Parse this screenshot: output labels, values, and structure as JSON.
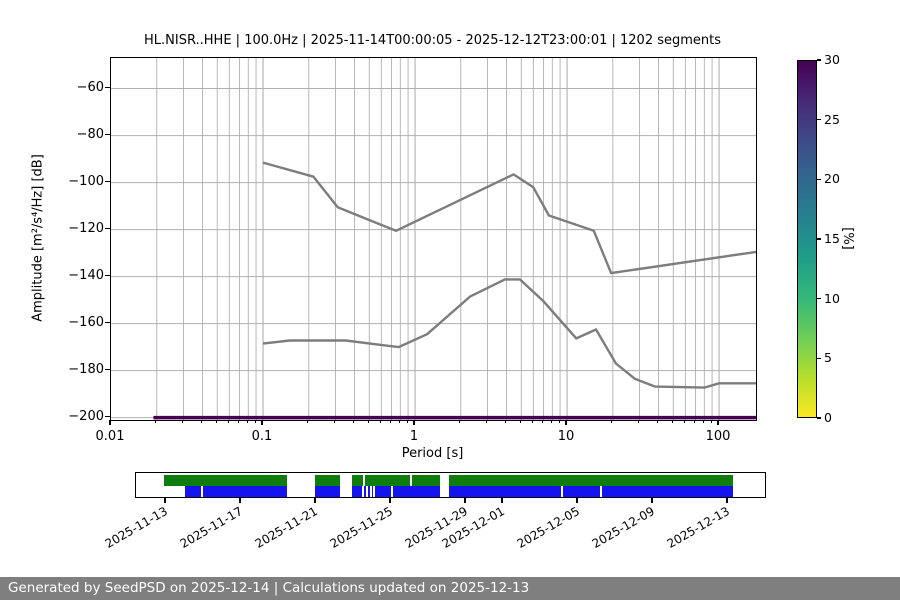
{
  "header": {
    "title": "HL.NISR..HHE | 100.0Hz | 2025-11-14T00:00:05 - 2025-12-12T23:00:01 | 1202 segments"
  },
  "chart_data": {
    "type": "line",
    "title": "HL.NISR..HHE | 100.0Hz | 2025-11-14T00:00:05 - 2025-12-12T23:00:01 | 1202 segments",
    "xlabel": "Period [s]",
    "ylabel": "Amplitude [m²/s⁴/Hz] [dB]",
    "xscale": "log",
    "xlim": [
      0.01,
      175
    ],
    "ylim": [
      -201,
      -47
    ],
    "grid": true,
    "grid_color": "#b0b0b0",
    "xticks": {
      "values": [
        0.01,
        0.1,
        1,
        10,
        100
      ],
      "labels": [
        "0.01",
        "0.1",
        "1",
        "10",
        "100"
      ]
    },
    "yticks": {
      "values": [
        -60,
        -80,
        -100,
        -120,
        -140,
        -160,
        -180,
        -200
      ],
      "labels": [
        "−60",
        "−80",
        "−100",
        "−120",
        "−140",
        "−160",
        "−180",
        "−200"
      ]
    },
    "series": [
      {
        "name": "max-envelope",
        "color": "#7d7d7d",
        "width": 2.4,
        "points": [
          [
            0.1,
            -91.5
          ],
          [
            0.215,
            -97.5
          ],
          [
            0.31,
            -110.5
          ],
          [
            0.75,
            -120.5
          ],
          [
            4.45,
            -96.5
          ],
          [
            6,
            -102
          ],
          [
            7.6,
            -114
          ],
          [
            15,
            -120.5
          ],
          [
            19.5,
            -138.5
          ],
          [
            175,
            -129.5
          ]
        ]
      },
      {
        "name": "min-envelope",
        "color": "#7d7d7d",
        "width": 2.4,
        "points": [
          [
            0.1,
            -168.5
          ],
          [
            0.15,
            -167.2
          ],
          [
            0.35,
            -167.2
          ],
          [
            0.78,
            -170
          ],
          [
            1.2,
            -164.5
          ],
          [
            2.3,
            -148.5
          ],
          [
            3.9,
            -141.2
          ],
          [
            4.9,
            -141.2
          ],
          [
            7,
            -150.5
          ],
          [
            11.5,
            -166.3
          ],
          [
            15.5,
            -162.5
          ],
          [
            21,
            -177
          ],
          [
            28,
            -183.5
          ],
          [
            38,
            -186.8
          ],
          [
            80,
            -187.2
          ],
          [
            100,
            -185.4
          ],
          [
            175,
            -185.4
          ]
        ]
      },
      {
        "name": "psd-mode-line",
        "color": "#440154",
        "width": 3.5,
        "points": [
          [
            0.019,
            -200
          ],
          [
            175,
            -200
          ]
        ]
      }
    ],
    "colorbar": {
      "label": "[%]",
      "min": 0,
      "max": 30,
      "ticks": {
        "values": [
          0,
          5,
          10,
          15,
          20,
          25,
          30
        ],
        "labels": [
          "0",
          "5",
          "10",
          "15",
          "20",
          "25",
          "30"
        ]
      },
      "colormap": "viridis_r",
      "stops_top_to_bottom": [
        "#440154",
        "#482878",
        "#3e4a89",
        "#31688e",
        "#26828e",
        "#1f9e89",
        "#35b779",
        "#6ece58",
        "#b5de2b",
        "#fde725"
      ]
    }
  },
  "timeline": {
    "green_color": "#0e7d0e",
    "blue_color": "#1414ee",
    "green_segments": [
      [
        0.0444,
        0.2409
      ],
      [
        0.2852,
        0.3249
      ],
      [
        0.3439,
        0.3613
      ],
      [
        0.3645,
        0.4358
      ],
      [
        0.439,
        0.4834
      ],
      [
        0.4992,
        0.9509
      ]
    ],
    "blue_segments": [
      [
        0.0777,
        0.103
      ],
      [
        0.1062,
        0.2409
      ],
      [
        0.2852,
        0.3249
      ],
      [
        0.3439,
        0.3597
      ],
      [
        0.3629,
        0.3661
      ],
      [
        0.3692,
        0.3724
      ],
      [
        0.3756,
        0.3772
      ],
      [
        0.3804,
        0.4057
      ],
      [
        0.4089,
        0.4834
      ],
      [
        0.4992,
        0.6767
      ],
      [
        0.6799,
        0.7385
      ],
      [
        0.7417,
        0.9509
      ]
    ],
    "ticks": [
      {
        "pos": 0.0475,
        "label": "2025-11-13"
      },
      {
        "pos": 0.1664,
        "label": "2025-11-17"
      },
      {
        "pos": 0.2852,
        "label": "2025-11-21"
      },
      {
        "pos": 0.4041,
        "label": "2025-11-25"
      },
      {
        "pos": 0.523,
        "label": "2025-11-29"
      },
      {
        "pos": 0.5816,
        "label": "2025-12-01"
      },
      {
        "pos": 0.7005,
        "label": "2025-12-05"
      },
      {
        "pos": 0.8193,
        "label": "2025-12-09"
      },
      {
        "pos": 0.9382,
        "label": "2025-12-13"
      }
    ]
  },
  "footer": {
    "text": "Generated by SeedPSD on 2025-12-14 | Calculations updated on 2025-12-13"
  }
}
